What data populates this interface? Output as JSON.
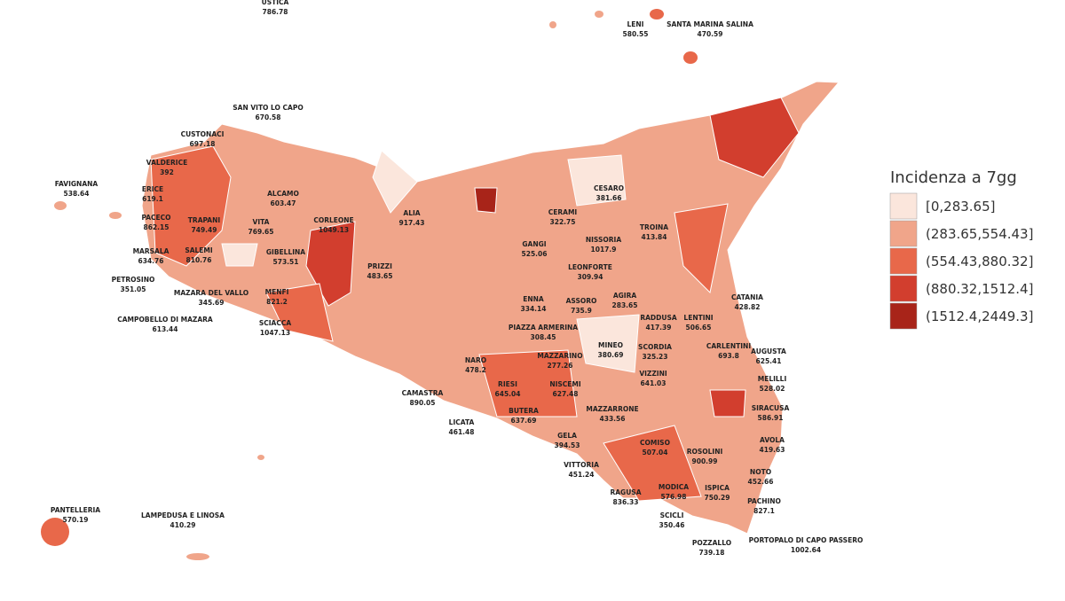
{
  "map": {
    "legend": {
      "title": "Incidenza a 7gg",
      "items": [
        {
          "label": "[0,283.65]",
          "color": "#fbe6dc"
        },
        {
          "label": "(283.65,554.43]",
          "color": "#f0a58a"
        },
        {
          "label": "(554.43,880.32]",
          "color": "#e8684a"
        },
        {
          "label": "(880.32,1512.4]",
          "color": "#d23e2e"
        },
        {
          "label": "(1512.4,2449.3]",
          "color": "#a82419"
        }
      ]
    },
    "labels": [
      {
        "name": "USTICA",
        "value": 786.78
      },
      {
        "name": "LENI",
        "value": 580.55
      },
      {
        "name": "SANTA MARINA SALINA",
        "value": 470.59
      },
      {
        "name": "SAN VITO LO CAPO",
        "value": 670.58
      },
      {
        "name": "CUSTONACI",
        "value": 697.18
      },
      {
        "name": "VALDERICE",
        "value": 392
      },
      {
        "name": "FAVIGNANA",
        "value": 538.64
      },
      {
        "name": "ERICE",
        "value": 619.1
      },
      {
        "name": "PACECO",
        "value": 862.15
      },
      {
        "name": "TRAPANI",
        "value": 749.49
      },
      {
        "name": "ALCAMO",
        "value": 603.47
      },
      {
        "name": "VITA",
        "value": 769.65
      },
      {
        "name": "CORLEONE",
        "value": 1049.13
      },
      {
        "name": "ALIA",
        "value": 917.43
      },
      {
        "name": "CESARO",
        "value": 381.66
      },
      {
        "name": "CERAMI",
        "value": 322.75
      },
      {
        "name": "GANGI",
        "value": 525.06
      },
      {
        "name": "NISSORIA",
        "value": 1017.9
      },
      {
        "name": "TROINA",
        "value": 413.84
      },
      {
        "name": "MARSALA",
        "value": 634.76
      },
      {
        "name": "SALEMI",
        "value": 810.76
      },
      {
        "name": "GIBELLINA",
        "value": 573.51
      },
      {
        "name": "PRIZZI",
        "value": 483.65
      },
      {
        "name": "LEONFORTE",
        "value": 309.94
      },
      {
        "name": "PETROSINO",
        "value": 351.05
      },
      {
        "name": "MAZARA DEL VALLO",
        "value": 345.69
      },
      {
        "name": "MENFI",
        "value": 821.2
      },
      {
        "name": "ENNA",
        "value": 334.14
      },
      {
        "name": "ASSORO",
        "value": 735.9
      },
      {
        "name": "AGIRA",
        "value": 283.65
      },
      {
        "name": "CAMPOBELLO DI MAZARA",
        "value": 613.44
      },
      {
        "name": "SCIACCA",
        "value": 1047.13
      },
      {
        "name": "RADDUSA",
        "value": 417.39
      },
      {
        "name": "LENTINI",
        "value": 506.65
      },
      {
        "name": "CATANIA",
        "value": 428.82
      },
      {
        "name": "PIAZZA ARMERINA",
        "value": 308.45
      },
      {
        "name": "MINEO",
        "value": 380.69
      },
      {
        "name": "CARLENTINI",
        "value": 693.8
      },
      {
        "name": "AUGUSTA",
        "value": 625.41
      },
      {
        "name": "MAZZARINO",
        "value": 277.26
      },
      {
        "name": "SCORDIA",
        "value": 325.23
      },
      {
        "name": "NARO",
        "value": 478.2
      },
      {
        "name": "MELILLI",
        "value": 528.02
      },
      {
        "name": "VIZZINI",
        "value": 641.03
      },
      {
        "name": "RIESI",
        "value": 645.04
      },
      {
        "name": "NISCEMI",
        "value": 627.48
      },
      {
        "name": "CAMASTRA",
        "value": 890.05
      },
      {
        "name": "SIRACUSA",
        "value": 586.91
      },
      {
        "name": "BUTERA",
        "value": 637.69
      },
      {
        "name": "MAZZARRONE",
        "value": 433.56
      },
      {
        "name": "LICATA",
        "value": 461.48
      },
      {
        "name": "AVOLA",
        "value": 419.63
      },
      {
        "name": "GELA",
        "value": 394.53
      },
      {
        "name": "COMISO",
        "value": 507.04
      },
      {
        "name": "ROSOLINI",
        "value": 900.99
      },
      {
        "name": "VITTORIA",
        "value": 451.24
      },
      {
        "name": "NOTO",
        "value": 452.66
      },
      {
        "name": "RAGUSA",
        "value": 836.33
      },
      {
        "name": "MODICA",
        "value": 576.98
      },
      {
        "name": "ISPICA",
        "value": 750.29
      },
      {
        "name": "PACHINO",
        "value": 827.1
      },
      {
        "name": "PANTELLERIA",
        "value": 570.19
      },
      {
        "name": "LAMPEDUSA E LINOSA",
        "value": 410.29
      },
      {
        "name": "SCICLI",
        "value": 350.46
      },
      {
        "name": "POZZALLO",
        "value": 739.18
      },
      {
        "name": "PORTOPALO DI CAPO PASSERO",
        "value": 1002.64
      }
    ]
  }
}
